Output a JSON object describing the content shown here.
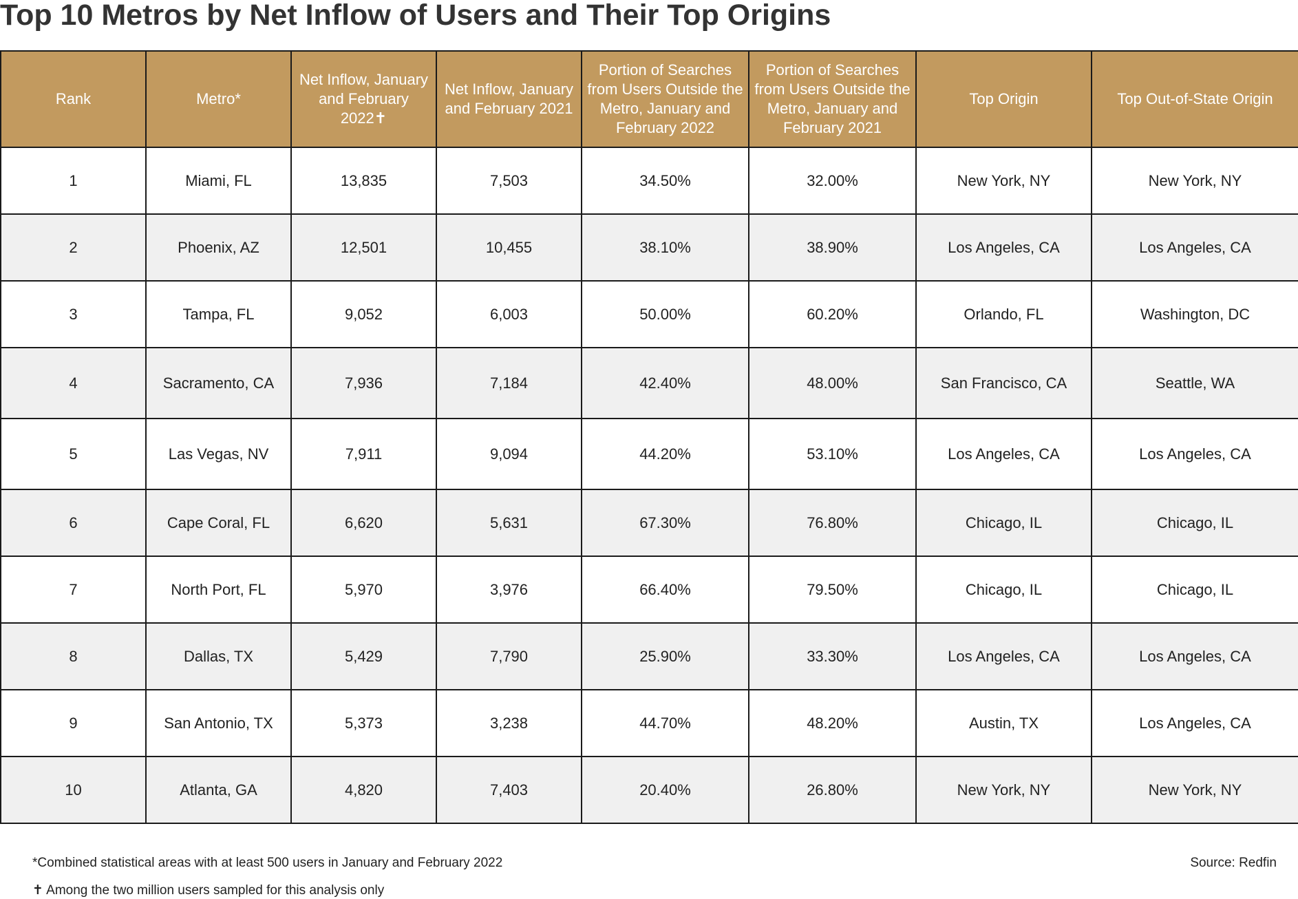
{
  "title": "Top 10 Metros by Net Inflow of Users and Their Top Origins",
  "colors": {
    "header_bg": "#c29a5f",
    "header_text": "#ffffff",
    "stripe": "#f0f0f0",
    "border": "#1a1a1a"
  },
  "chart_data": {
    "type": "table",
    "title": "Top 10 Metros by Net Inflow of Users and Their Top Origins",
    "columns": [
      "Rank",
      "Metro*",
      "Net Inflow, January and February 2022✝",
      "Net Inflow, January and February 2021",
      "Portion of Searches from Users Outside the Metro, January and February 2022",
      "Portion of Searches from Users Outside the Metro, January and February 2021",
      "Top Origin",
      "Top Out-of-State Origin"
    ],
    "rows": [
      [
        "1",
        "Miami, FL",
        "13,835",
        "7,503",
        "34.50%",
        "32.00%",
        "New York, NY",
        "New York, NY"
      ],
      [
        "2",
        "Phoenix, AZ",
        "12,501",
        "10,455",
        "38.10%",
        "38.90%",
        "Los Angeles, CA",
        "Los Angeles, CA"
      ],
      [
        "3",
        "Tampa, FL",
        "9,052",
        "6,003",
        "50.00%",
        "60.20%",
        "Orlando, FL",
        "Washington, DC"
      ],
      [
        "4",
        "Sacramento, CA",
        "7,936",
        "7,184",
        "42.40%",
        "48.00%",
        "San Francisco, CA",
        "Seattle, WA"
      ],
      [
        "5",
        "Las Vegas, NV",
        "7,911",
        "9,094",
        "44.20%",
        "53.10%",
        "Los Angeles, CA",
        "Los Angeles, CA"
      ],
      [
        "6",
        "Cape Coral, FL",
        "6,620",
        "5,631",
        "67.30%",
        "76.80%",
        "Chicago, IL",
        "Chicago, IL"
      ],
      [
        "7",
        "North Port, FL",
        "5,970",
        "3,976",
        "66.40%",
        "79.50%",
        "Chicago, IL",
        "Chicago, IL"
      ],
      [
        "8",
        "Dallas, TX",
        "5,429",
        "7,790",
        "25.90%",
        "33.30%",
        "Los Angeles, CA",
        "Los Angeles, CA"
      ],
      [
        "9",
        "San Antonio, TX",
        "5,373",
        "3,238",
        "44.70%",
        "48.20%",
        "Austin, TX",
        "Los Angeles, CA"
      ],
      [
        "10",
        "Atlanta, GA",
        "4,820",
        "7,403",
        "20.40%",
        "26.80%",
        "New York, NY",
        "New York, NY"
      ]
    ]
  },
  "footnotes": {
    "metro": "*Combined statistical areas with at least 500 users in January and February 2022",
    "dagger": "✝ Among the two million users sampled for this analysis only",
    "source": "Source: Redfin"
  }
}
